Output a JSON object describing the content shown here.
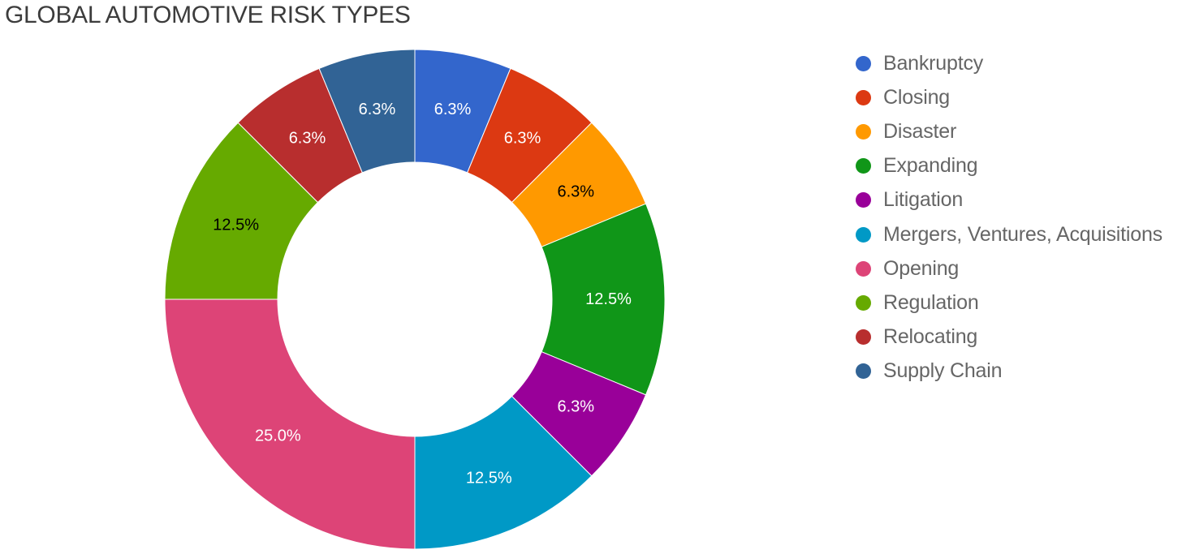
{
  "chart_data": {
    "type": "pie",
    "donut": true,
    "title": "GLOBAL AUTOMOTIVE RISK TYPES",
    "legend_position": "right",
    "slices": [
      {
        "label": "Bankruptcy",
        "value": 6.25,
        "display": "6.3%",
        "color": "#3366cc",
        "label_color": "#ffffff"
      },
      {
        "label": "Closing",
        "value": 6.25,
        "display": "6.3%",
        "color": "#dc3912",
        "label_color": "#ffffff"
      },
      {
        "label": "Disaster",
        "value": 6.25,
        "display": "6.3%",
        "color": "#ff9900",
        "label_color": "#000000"
      },
      {
        "label": "Expanding",
        "value": 12.5,
        "display": "12.5%",
        "color": "#109618",
        "label_color": "#ffffff"
      },
      {
        "label": "Litigation",
        "value": 6.25,
        "display": "6.3%",
        "color": "#990099",
        "label_color": "#ffffff"
      },
      {
        "label": "Mergers, Ventures, Acquisitions",
        "value": 12.5,
        "display": "12.5%",
        "color": "#0099c6",
        "label_color": "#ffffff"
      },
      {
        "label": "Opening",
        "value": 25.0,
        "display": "25.0%",
        "color": "#dd4477",
        "label_color": "#ffffff"
      },
      {
        "label": "Regulation",
        "value": 12.5,
        "display": "12.5%",
        "color": "#66aa00",
        "label_color": "#000000"
      },
      {
        "label": "Relocating",
        "value": 6.25,
        "display": "6.3%",
        "color": "#b82e2e",
        "label_color": "#ffffff"
      },
      {
        "label": "Supply Chain",
        "value": 6.25,
        "display": "6.3%",
        "color": "#316395",
        "label_color": "#ffffff"
      }
    ]
  }
}
